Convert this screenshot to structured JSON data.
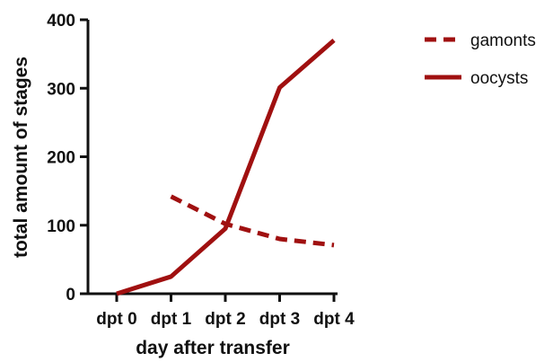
{
  "chart_data": {
    "type": "line",
    "xlabel": "day after transfer",
    "ylabel": "total amount of stages",
    "categories": [
      "dpt 0",
      "dpt 1",
      "dpt 2",
      "dpt 3",
      "dpt 4"
    ],
    "ylim": [
      0,
      400
    ],
    "yticks": [
      0,
      100,
      200,
      300,
      400
    ],
    "series": [
      {
        "name": "gamonts",
        "style": "dashed",
        "color": "#a01010",
        "values": [
          null,
          142,
          102,
          80,
          71
        ]
      },
      {
        "name": "oocysts",
        "style": "solid",
        "color": "#a01010",
        "values": [
          0,
          25,
          95,
          301,
          370
        ]
      }
    ],
    "legend_position": "top-right",
    "grid": false
  }
}
